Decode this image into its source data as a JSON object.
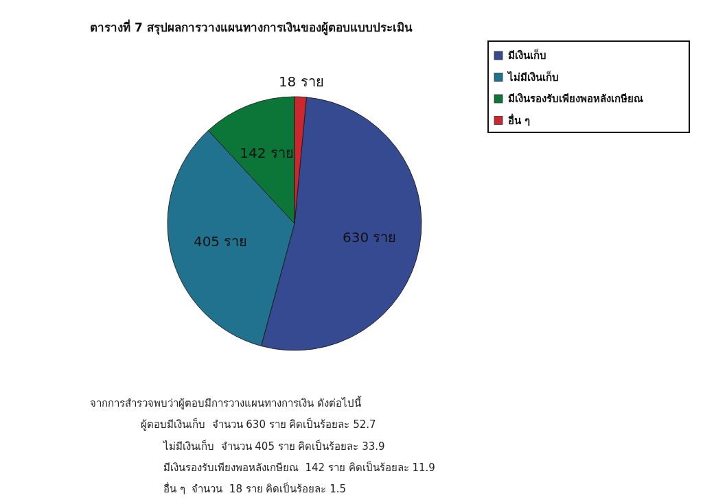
{
  "chart_data": {
    "type": "pie",
    "title": "ตารางที่ 7 สรุปผลการวางแผนทางการเงินของผู้ตอบแบบประเมิน",
    "categories": [
      "มีเงินเก็บ",
      "ไม่มีเงินเก็บ",
      "มีเงินรองรับเพียงพอหลังเกษียณ",
      "อื่น ๆ"
    ],
    "values": [
      630,
      405,
      142,
      18
    ],
    "colors": [
      "#364a92",
      "#20728f",
      "#0c7639",
      "#c8282e"
    ],
    "value_labels": [
      "630 ราย",
      "405 ราย",
      "142 ราย",
      "18 ราย"
    ],
    "legend": "top right",
    "annotations": [
      "จากการสำรวจพบว่าผู้ตอบมีการวางแผนทางการเงิน ดังต่อไปนี้",
      "ผู้ตอบมีเงินเก็บ  จำนวน 630 ราย คิดเป็นร้อยละ 52.7",
      "ไม่มีเงินเก็บ  จำนวน 405 ราย คิดเป็นร้อยละ 33.9",
      "มีเงินรองรับเพียงพอหลังเกษียณ  142 ราย คิดเป็นร้อยละ 11.9",
      "อื่น ๆ  จำนวน  18 ราย คิดเป็นร้อยละ 1.5"
    ]
  }
}
